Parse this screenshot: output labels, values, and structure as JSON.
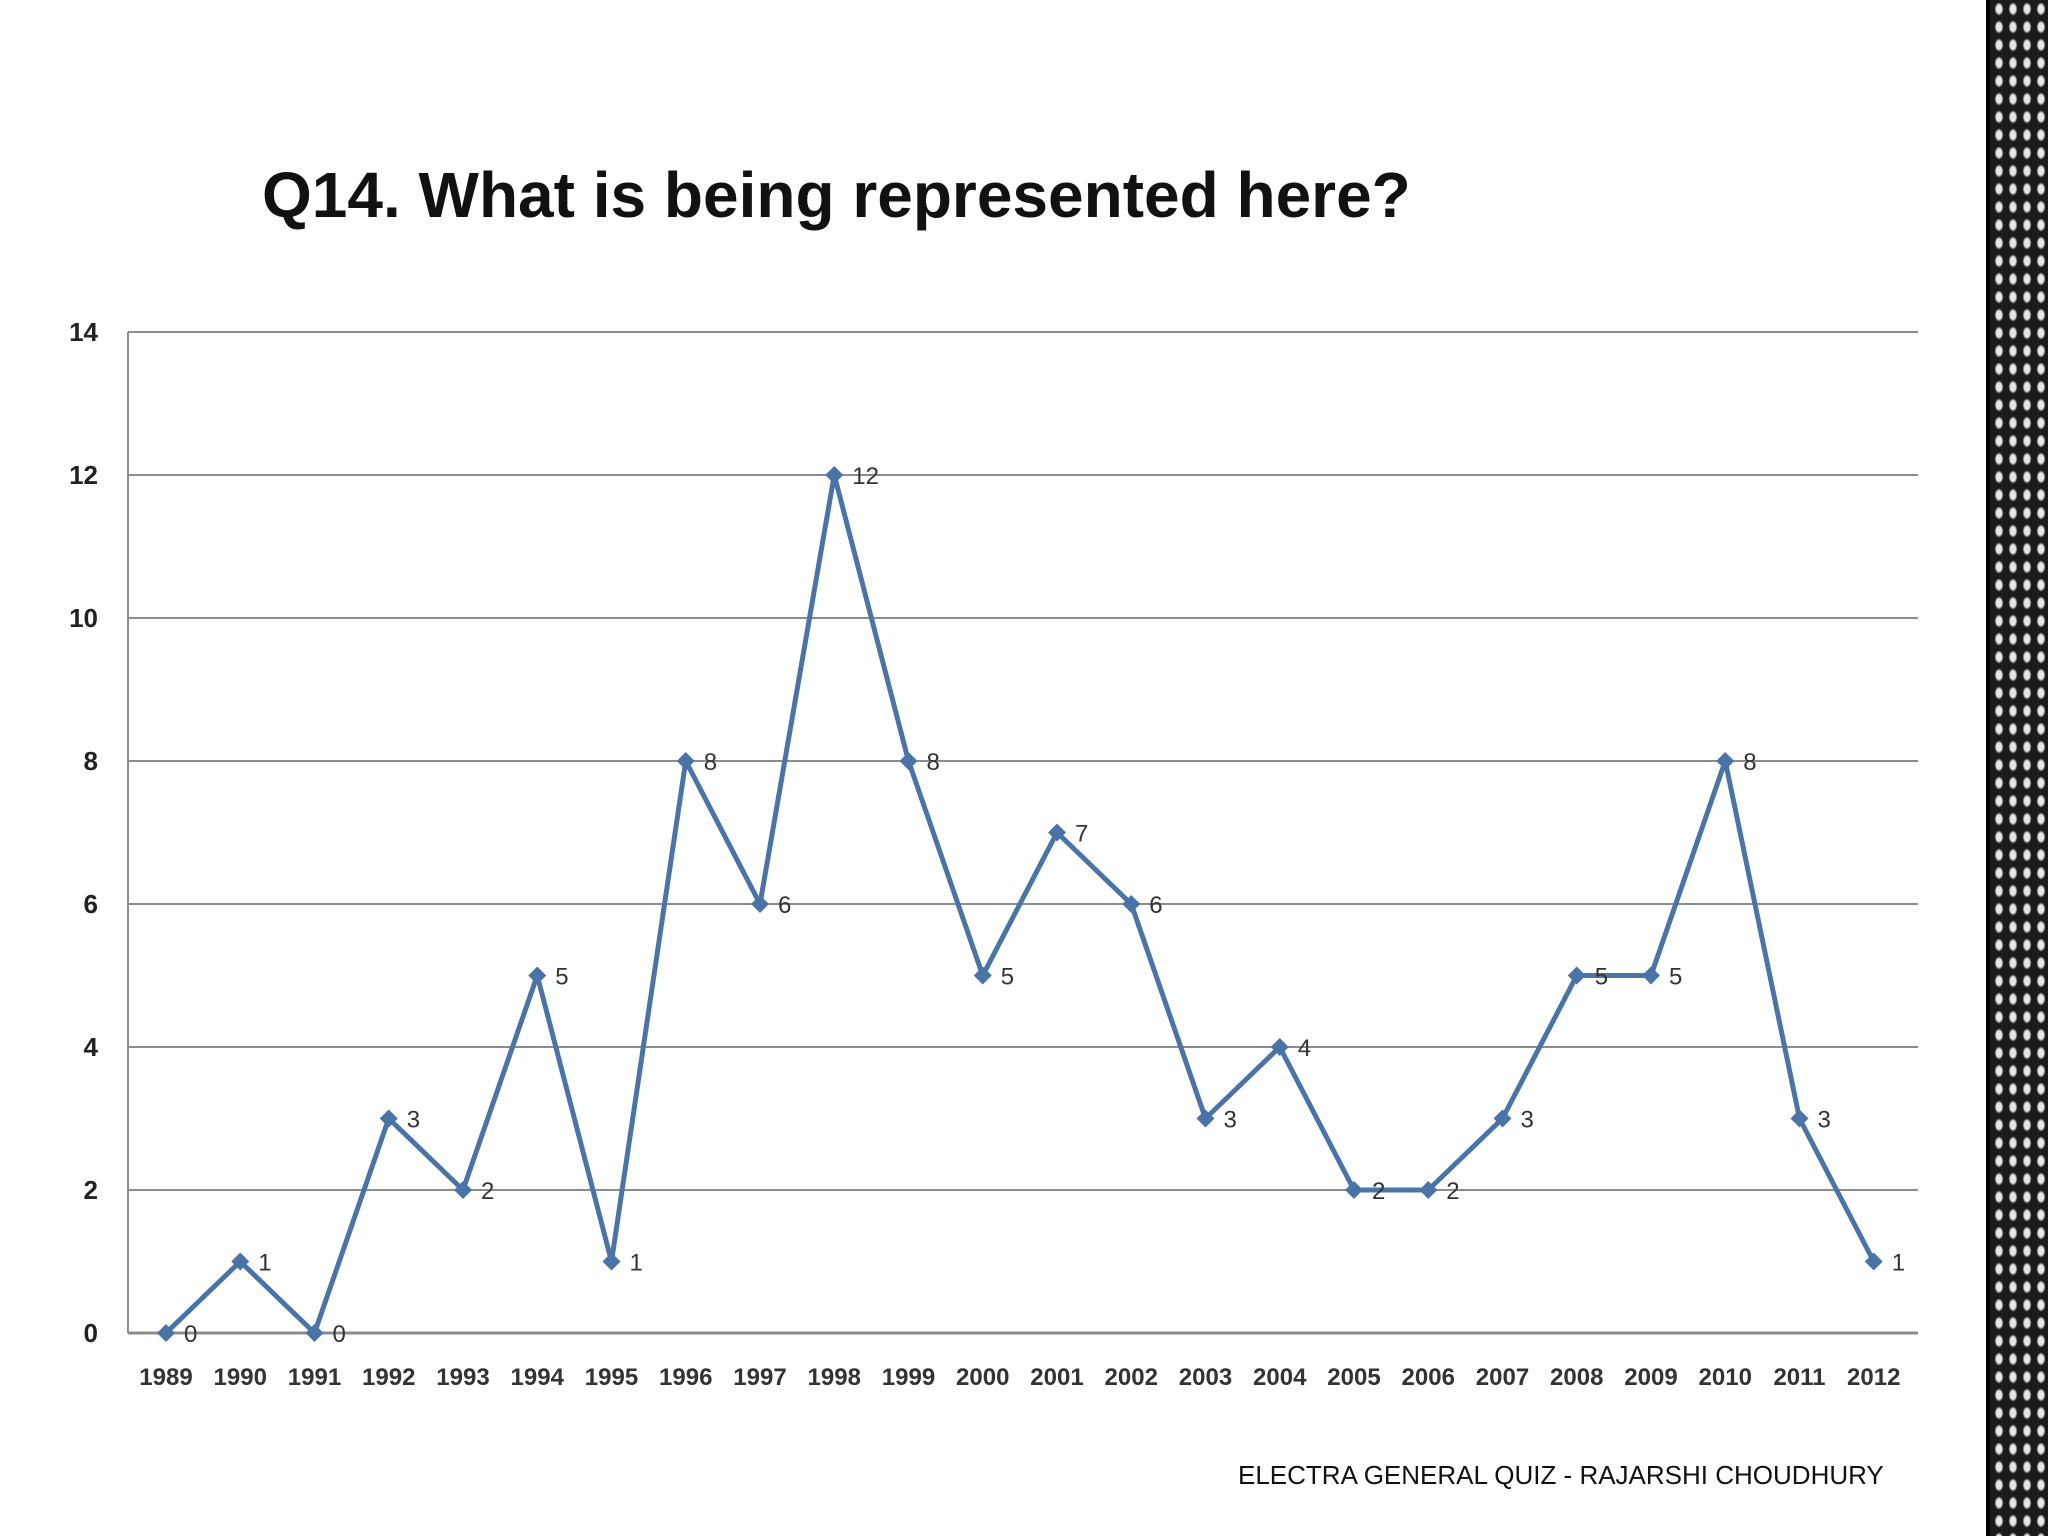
{
  "slide": {
    "title": "Q14. What is being represented here?",
    "footer": "ELECTRA GENERAL QUIZ - RAJARSHI CHOUDHURY"
  },
  "chart_data": {
    "type": "line",
    "title": "",
    "xlabel": "",
    "ylabel": "",
    "ylim": [
      0,
      14
    ],
    "yticks": [
      0,
      2,
      4,
      6,
      8,
      10,
      12,
      14
    ],
    "grid": true,
    "legend": "none",
    "categories": [
      "1989",
      "1990",
      "1991",
      "1992",
      "1993",
      "1994",
      "1995",
      "1996",
      "1997",
      "1998",
      "1999",
      "2000",
      "2001",
      "2002",
      "2003",
      "2004",
      "2005",
      "2006",
      "2007",
      "2008",
      "2009",
      "2010",
      "2011",
      "2012"
    ],
    "series": [
      {
        "name": "",
        "color": "#4a74a8",
        "values": [
          0,
          1,
          0,
          3,
          2,
          5,
          1,
          8,
          6,
          12,
          8,
          5,
          7,
          6,
          3,
          4,
          2,
          2,
          3,
          5,
          5,
          8,
          3,
          1
        ]
      }
    ]
  }
}
